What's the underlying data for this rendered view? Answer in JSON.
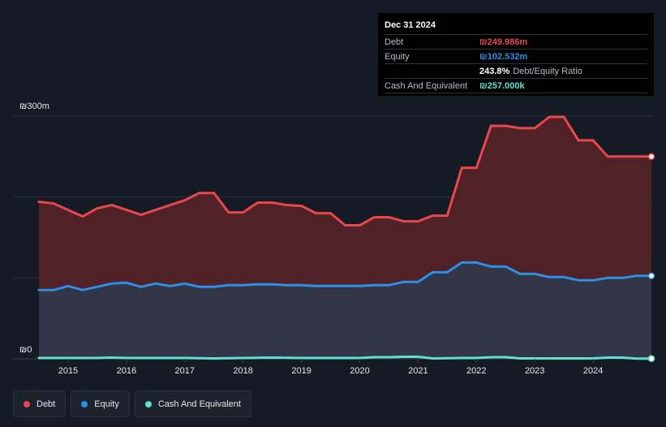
{
  "tooltip": {
    "date": "Dec 31 2024",
    "rows": [
      {
        "label": "Debt",
        "value": "₪249.986m",
        "color": "#e8474c",
        "extra": ""
      },
      {
        "label": "Equity",
        "value": "₪102.532m",
        "color": "#2d8fe6",
        "extra": ""
      },
      {
        "label": "",
        "value": "243.8%",
        "color": "#ffffff",
        "extra": "Debt/Equity Ratio"
      },
      {
        "label": "Cash And Equivalent",
        "value": "₪257.000k",
        "color": "#5fe0cc",
        "extra": ""
      }
    ]
  },
  "legend": [
    {
      "label": "Debt",
      "color": "#e8474c"
    },
    {
      "label": "Equity",
      "color": "#2d8fe6"
    },
    {
      "label": "Cash And Equivalent",
      "color": "#5fe0cc"
    }
  ],
  "chart_data": {
    "type": "area",
    "ylim": [
      0,
      300
    ],
    "y_tick_labels": {
      "top": "₪300m",
      "bottom": "₪0"
    },
    "x_ticks": [
      2015,
      2016,
      2017,
      2018,
      2019,
      2020,
      2021,
      2022,
      2023,
      2024
    ],
    "x_range": [
      2014.5,
      2025.0
    ],
    "grid": true,
    "legend_position": "bottom-left",
    "series": [
      {
        "name": "Debt",
        "color": "#e8474c",
        "fill": "#5a2228",
        "x": [
          2014.5,
          2014.75,
          2015.0,
          2015.25,
          2015.5,
          2015.75,
          2016.0,
          2016.25,
          2016.5,
          2016.75,
          2017.0,
          2017.25,
          2017.5,
          2017.75,
          2018.0,
          2018.25,
          2018.5,
          2018.75,
          2019.0,
          2019.25,
          2019.5,
          2019.75,
          2020.0,
          2020.25,
          2020.5,
          2020.75,
          2021.0,
          2021.25,
          2021.5,
          2021.75,
          2022.0,
          2022.25,
          2022.5,
          2022.75,
          2023.0,
          2023.25,
          2023.5,
          2023.75,
          2024.0,
          2024.25,
          2024.5,
          2024.75,
          2025.0
        ],
        "values": [
          194,
          192,
          184,
          176,
          186,
          190,
          184,
          178,
          184,
          190,
          196,
          205,
          205,
          181,
          181,
          193,
          193,
          190,
          189,
          180,
          180,
          165,
          165,
          175,
          175,
          170,
          170,
          177,
          177,
          236,
          236,
          288,
          288,
          285,
          285,
          299,
          299,
          270,
          270,
          250,
          250,
          250,
          250
        ]
      },
      {
        "name": "Equity",
        "color": "#2d8fe6",
        "fill": "#2e3a4e",
        "x": [
          2014.5,
          2014.75,
          2015.0,
          2015.25,
          2015.5,
          2015.75,
          2016.0,
          2016.25,
          2016.5,
          2016.75,
          2017.0,
          2017.25,
          2017.5,
          2017.75,
          2018.0,
          2018.25,
          2018.5,
          2018.75,
          2019.0,
          2019.25,
          2019.5,
          2019.75,
          2020.0,
          2020.25,
          2020.5,
          2020.75,
          2021.0,
          2021.25,
          2021.5,
          2021.75,
          2022.0,
          2022.25,
          2022.5,
          2022.75,
          2023.0,
          2023.25,
          2023.5,
          2023.75,
          2024.0,
          2024.25,
          2024.5,
          2024.75,
          2025.0
        ],
        "values": [
          85,
          85,
          90,
          85,
          89,
          93,
          94,
          89,
          93,
          90,
          93,
          89,
          89,
          91,
          91,
          92,
          92,
          91,
          91,
          90,
          90,
          90,
          90,
          91,
          91,
          95,
          95,
          107,
          107,
          119,
          119,
          114,
          114,
          105,
          105,
          101,
          101,
          97,
          97,
          100,
          100,
          102.5,
          102.5
        ]
      },
      {
        "name": "Cash And Equivalent",
        "color": "#5fe0cc",
        "fill": "none",
        "x": [
          2014.5,
          2015.0,
          2015.5,
          2015.75,
          2016.0,
          2016.5,
          2017.0,
          2017.5,
          2018.0,
          2018.5,
          2019.0,
          2019.5,
          2020.0,
          2020.25,
          2020.5,
          2020.75,
          2021.0,
          2021.25,
          2021.75,
          2022.0,
          2022.25,
          2022.5,
          2022.75,
          2023.0,
          2023.5,
          2024.0,
          2024.25,
          2024.5,
          2024.75,
          2025.0
        ],
        "values": [
          1,
          1,
          1,
          1.5,
          1,
          1,
          1,
          0.5,
          1,
          1.5,
          1,
          1,
          1,
          2,
          2,
          2.5,
          2.5,
          0.5,
          1,
          1,
          2,
          2,
          0.5,
          0.5,
          0.5,
          0.5,
          1.5,
          1.5,
          0.3,
          0.3
        ]
      }
    ]
  }
}
